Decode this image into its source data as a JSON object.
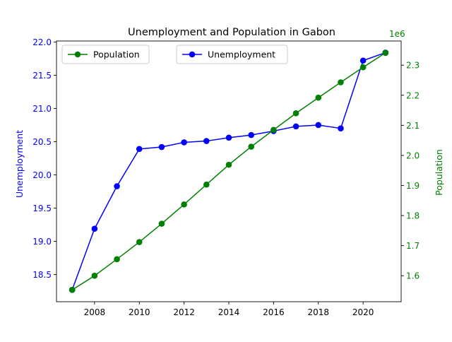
{
  "chart_data": {
    "type": "line",
    "title": "Unemployment and Population in Gabon",
    "x": [
      2007,
      2008,
      2009,
      2010,
      2011,
      2012,
      2013,
      2014,
      2015,
      2016,
      2017,
      2018,
      2019,
      2020,
      2021
    ],
    "x_ticks": [
      2008,
      2010,
      2012,
      2014,
      2016,
      2018,
      2020
    ],
    "xlim": [
      2006.3,
      2021.7
    ],
    "series": [
      {
        "name": "Unemployment",
        "axis": "left",
        "color": "#0000ff",
        "values": [
          18.27,
          19.19,
          19.83,
          20.39,
          20.42,
          20.49,
          20.51,
          20.56,
          20.6,
          20.66,
          20.73,
          20.75,
          20.7,
          21.72,
          21.84
        ]
      },
      {
        "name": "Population",
        "axis": "right",
        "color": "#008000",
        "values": [
          1553000,
          1600000,
          1655000,
          1712000,
          1773000,
          1837000,
          1903000,
          1969000,
          2029000,
          2085000,
          2140000,
          2192000,
          2243000,
          2293000,
          2341000
        ]
      }
    ],
    "y_left": {
      "label": "Unemployment",
      "color": "#0000ff",
      "lim": [
        18.092,
        22.015
      ],
      "ticks": [
        "18.5",
        "19.0",
        "19.5",
        "20.0",
        "20.5",
        "21.0",
        "21.5",
        "22.0"
      ]
    },
    "y_right": {
      "label": "Population",
      "color": "#008000",
      "lim": [
        1513600,
        2380400
      ],
      "ticks": [
        "1.6",
        "1.7",
        "1.8",
        "1.9",
        "2.0",
        "2.1",
        "2.2",
        "2.3"
      ],
      "offset_text": "1e6"
    },
    "legends": [
      {
        "position": "upper-left",
        "entries": [
          "Population"
        ]
      },
      {
        "position": "upper-center",
        "entries": [
          "Unemployment"
        ]
      }
    ],
    "grid": false
  }
}
